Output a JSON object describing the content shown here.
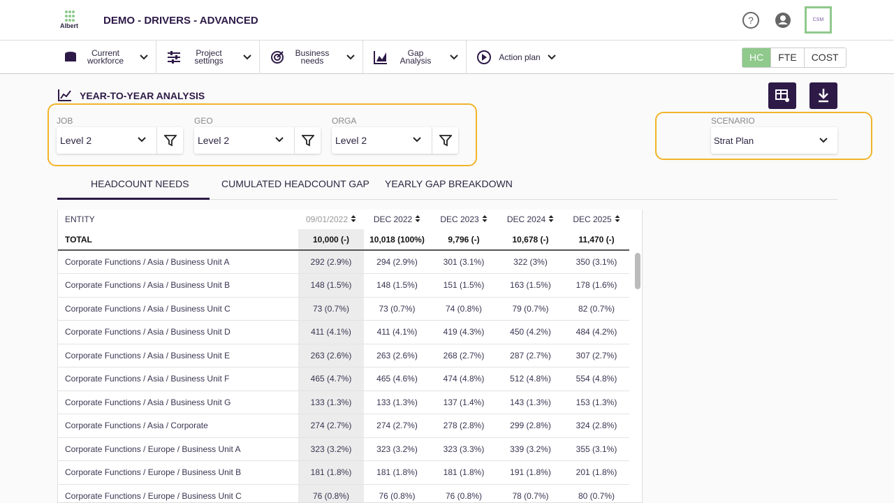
{
  "header": {
    "logo": "Albert",
    "title": "DEMO - DRIVERS - ADVANCED",
    "avatar": "CSM"
  },
  "nav": {
    "items": [
      "Current workforce",
      "Project settings",
      "Business needs",
      "Gap Analysis",
      "Action plan"
    ],
    "units": [
      "HC",
      "FTE",
      "COST"
    ]
  },
  "section": {
    "title": "YEAR-TO-YEAR ANALYSIS"
  },
  "filters": [
    {
      "label": "JOB",
      "value": "Level 2"
    },
    {
      "label": "GEO",
      "value": "Level 2"
    },
    {
      "label": "ORGA",
      "value": "Level 2"
    }
  ],
  "scenario": {
    "label": "SCENARIO",
    "value": "Strat Plan"
  },
  "tabs": [
    "HEADCOUNT NEEDS",
    "CUMULATED HEADCOUNT GAP",
    "YEARLY GAP BREAKDOWN"
  ],
  "table": {
    "columns": [
      "ENTITY",
      "09/01/2022",
      "DEC 2022",
      "DEC 2023",
      "DEC 2024",
      "DEC 2025"
    ],
    "total": [
      "TOTAL",
      "10,000 (-)",
      "10,018 (100%)",
      "9,796 (-)",
      "10,678 (-)",
      "11,470 (-)"
    ],
    "rows": [
      [
        "Corporate Functions / Asia / Business Unit A",
        "292 (2.9%)",
        "294 (2.9%)",
        "301 (3.1%)",
        "322 (3%)",
        "350 (3.1%)"
      ],
      [
        "Corporate Functions / Asia / Business Unit B",
        "148 (1.5%)",
        "148 (1.5%)",
        "151 (1.5%)",
        "163 (1.5%)",
        "178 (1.6%)"
      ],
      [
        "Corporate Functions / Asia / Business Unit C",
        "73 (0.7%)",
        "73 (0.7%)",
        "74 (0.8%)",
        "79 (0.7%)",
        "82 (0.7%)"
      ],
      [
        "Corporate Functions / Asia / Business Unit D",
        "411 (4.1%)",
        "411 (4.1%)",
        "419 (4.3%)",
        "450 (4.2%)",
        "484 (4.2%)"
      ],
      [
        "Corporate Functions / Asia / Business Unit E",
        "263 (2.6%)",
        "263 (2.6%)",
        "268 (2.7%)",
        "287 (2.7%)",
        "307 (2.7%)"
      ],
      [
        "Corporate Functions / Asia / Business Unit F",
        "465 (4.7%)",
        "465 (4.6%)",
        "474 (4.8%)",
        "512 (4.8%)",
        "554 (4.8%)"
      ],
      [
        "Corporate Functions / Asia / Business Unit G",
        "133 (1.3%)",
        "133 (1.3%)",
        "137 (1.4%)",
        "143 (1.3%)",
        "153 (1.3%)"
      ],
      [
        "Corporate Functions / Asia / Corporate",
        "274 (2.7%)",
        "274 (2.7%)",
        "278 (2.8%)",
        "299 (2.8%)",
        "324 (2.8%)"
      ],
      [
        "Corporate Functions / Europe / Business Unit A",
        "323 (3.2%)",
        "323 (3.2%)",
        "323 (3.3%)",
        "339 (3.2%)",
        "355 (3.1%)"
      ],
      [
        "Corporate Functions / Europe / Business Unit B",
        "181 (1.8%)",
        "181 (1.8%)",
        "181 (1.8%)",
        "191 (1.8%)",
        "201 (1.8%)"
      ],
      [
        "Corporate Functions / Europe / Business Unit C",
        "76 (0.8%)",
        "76 (0.8%)",
        "76 (0.8%)",
        "78 (0.7%)",
        "80 (0.7%)"
      ]
    ]
  }
}
